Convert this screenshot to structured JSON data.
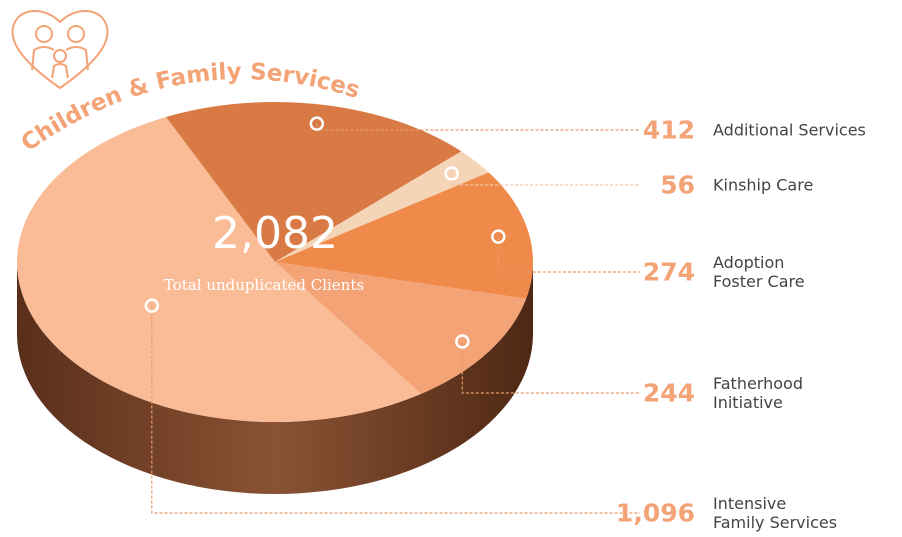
{
  "chart_data": {
    "type": "pie",
    "title": "Children & Family Services",
    "total_label": "2,082",
    "total_caption": "Total unduplicated Clients",
    "categories": [
      "Additional Services",
      "Kinship Care",
      "Adoption\nFoster Care",
      "Fatherhood\nInitiative",
      "Intensive\nFamily Services"
    ],
    "values": [
      412,
      56,
      274,
      244,
      1096
    ],
    "value_labels": [
      "412",
      "56",
      "274",
      "244",
      "1,096"
    ],
    "colors": [
      "#d97a45",
      "#f5d5b8",
      "#f08a4b",
      "#f4a377",
      "#f9bc96"
    ]
  }
}
